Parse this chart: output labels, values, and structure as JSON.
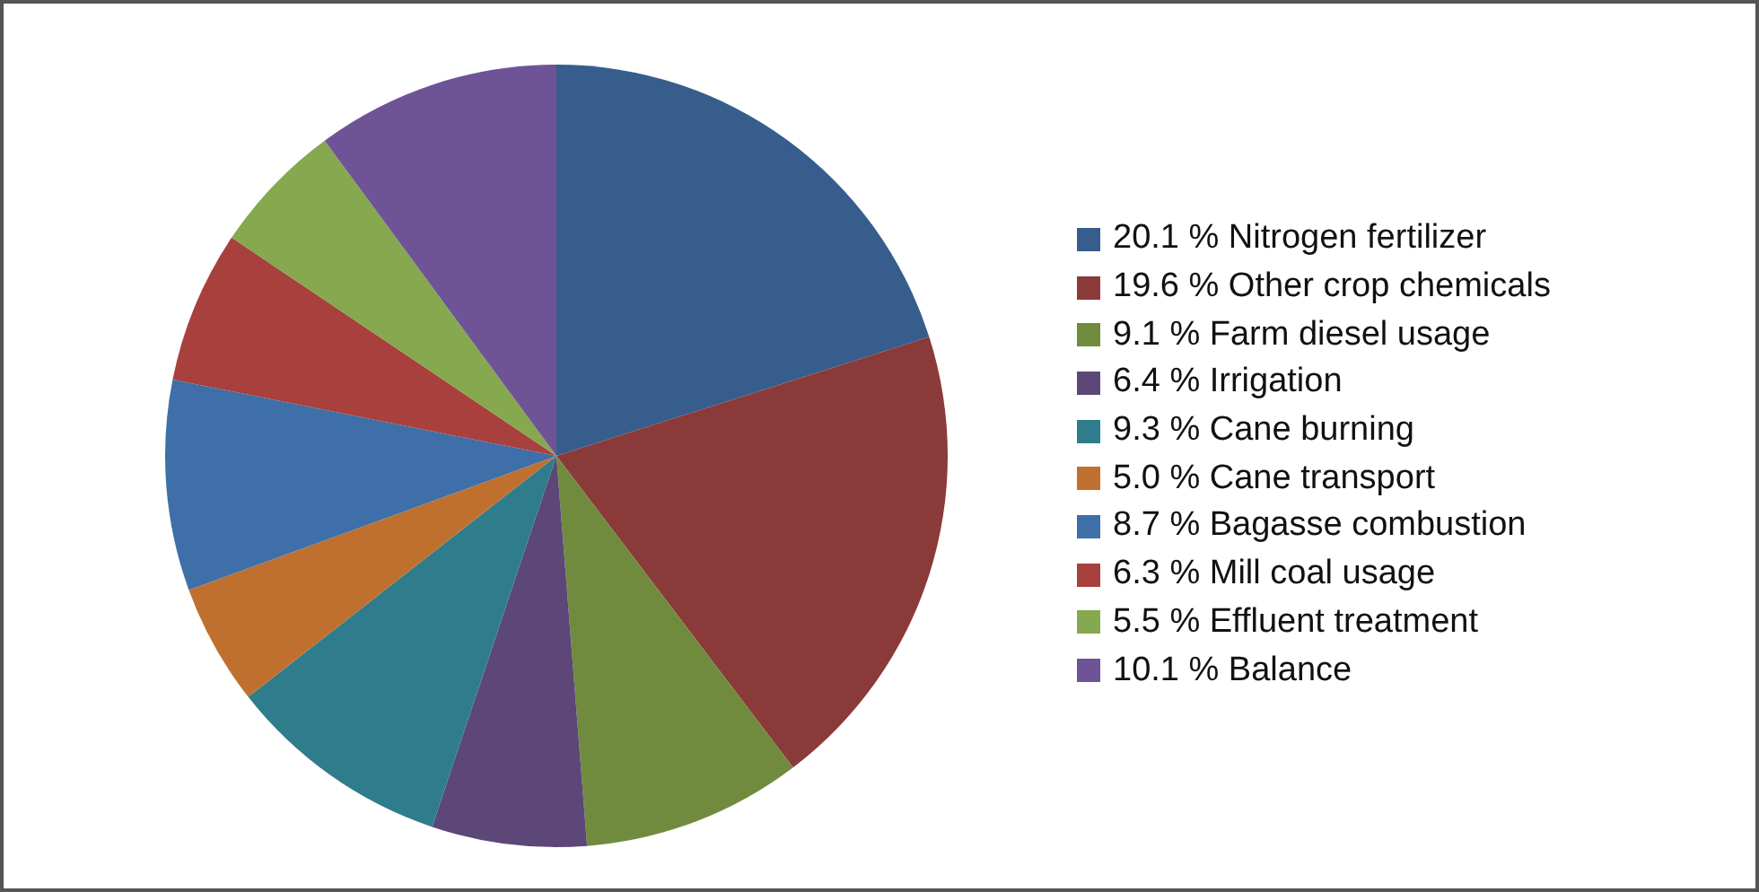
{
  "chart_data": {
    "type": "pie",
    "categories": [
      "Nitrogen fertilizer",
      "Other crop chemicals",
      "Farm diesel usage",
      "Irrigation",
      "Cane burning",
      "Cane transport",
      "Bagasse combustion",
      "Mill coal usage",
      "Effluent treatment",
      "Balance"
    ],
    "values": [
      20.1,
      19.6,
      9.1,
      6.4,
      9.3,
      5.0,
      8.7,
      6.3,
      5.5,
      10.1
    ],
    "value_labels": [
      "20.1 %",
      "19.6 %",
      "9.1 %",
      "6.4 %",
      "9.3 %",
      "5.0 %",
      "8.7 %",
      "6.3 %",
      "5.5 %",
      "10.1 %"
    ],
    "colors": [
      "#375d8c",
      "#8b3a3a",
      "#718b3e",
      "#5c4778",
      "#2f7d8c",
      "#c0702e",
      "#3e6fa8",
      "#a8403e",
      "#86a84e",
      "#6e5496"
    ],
    "legend": "right"
  }
}
